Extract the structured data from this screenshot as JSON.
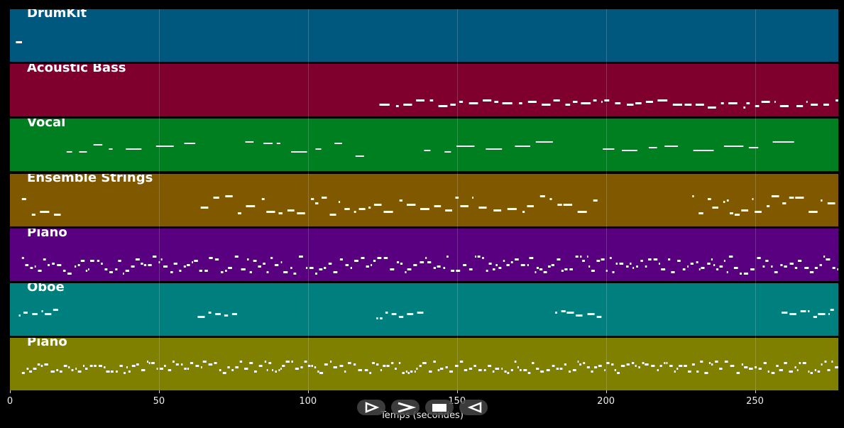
{
  "tracks": [
    {
      "name": "DrumKit",
      "color": "#00587f"
    },
    {
      "name": "Acoustic Bass",
      "color": "#7f002c"
    },
    {
      "name": "Vocal",
      "color": "#007f20"
    },
    {
      "name": "Ensemble Strings",
      "color": "#7f5800"
    },
    {
      "name": "Piano",
      "color": "#58007f"
    },
    {
      "name": "Oboe",
      "color": "#007f7f"
    },
    {
      "name": "Piano",
      "color": "#7f7f00"
    }
  ],
  "x_axis": {
    "label": "Temps (secondes)",
    "min": 0,
    "max": 278,
    "ticks": [
      "0",
      "50",
      "100",
      "150",
      "200",
      "250"
    ]
  },
  "playback_controls": {
    "buttons": [
      "play-icon",
      "fast-forward-icon",
      "stop-icon",
      "rewind-icon"
    ]
  }
}
